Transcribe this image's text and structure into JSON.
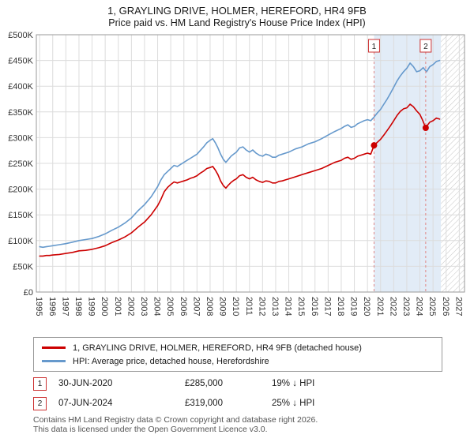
{
  "chart_data": {
    "type": "line",
    "title": "1, GRAYLING DRIVE, HOLMER, HEREFORD, HR4 9FB",
    "subtitle": "Price paid vs. HM Land Registry's House Price Index (HPI)",
    "xlabel": "",
    "ylabel": "",
    "grid": true,
    "xlim": [
      1994.75,
      2027.4
    ],
    "ylim": [
      0,
      500000
    ],
    "ytick_step": 50000,
    "yticks": [
      "£0",
      "£50K",
      "£100K",
      "£150K",
      "£200K",
      "£250K",
      "£300K",
      "£350K",
      "£400K",
      "£450K",
      "£500K"
    ],
    "xticks": [
      1995,
      1996,
      1997,
      1998,
      1999,
      2000,
      2001,
      2002,
      2003,
      2004,
      2005,
      2006,
      2007,
      2008,
      2009,
      2010,
      2011,
      2012,
      2013,
      2014,
      2015,
      2016,
      2017,
      2018,
      2019,
      2020,
      2021,
      2022,
      2023,
      2024,
      2025,
      2026,
      2027
    ],
    "shaded_band": {
      "from": 2020.5,
      "to": 2025.6,
      "color": "#e2ecf7"
    },
    "hatched_band": {
      "from": 2025.6,
      "to": 2027.4
    },
    "marker_color": "#cc3333",
    "marker_line_color": "#e08888",
    "markers": [
      {
        "label": "1",
        "x": 2020.5,
        "y": 285000
      },
      {
        "label": "2",
        "x": 2024.44,
        "y": 319000
      }
    ],
    "legend": {
      "position": "bottom",
      "items": [
        {
          "label": "1, GRAYLING DRIVE, HOLMER, HEREFORD, HR4 9FB (detached house)",
          "color": "#cc0000"
        },
        {
          "label": "HPI: Average price, detached house, Herefordshire",
          "color": "#6699cc"
        }
      ]
    },
    "series": [
      {
        "name": "price-paid",
        "color": "#cc0000",
        "points": [
          [
            1995,
            70000
          ],
          [
            1995.25,
            70000
          ],
          [
            1995.5,
            71000
          ],
          [
            1995.75,
            71000
          ],
          [
            1996,
            72000
          ],
          [
            1996.5,
            73000
          ],
          [
            1997,
            75000
          ],
          [
            1997.5,
            77000
          ],
          [
            1998,
            80000
          ],
          [
            1998.5,
            81000
          ],
          [
            1999,
            83000
          ],
          [
            1999.5,
            86000
          ],
          [
            2000,
            90000
          ],
          [
            2000.5,
            96000
          ],
          [
            2001,
            101000
          ],
          [
            2001.5,
            107000
          ],
          [
            2002,
            115000
          ],
          [
            2002.5,
            126000
          ],
          [
            2003,
            136000
          ],
          [
            2003.5,
            150000
          ],
          [
            2004,
            168000
          ],
          [
            2004.25,
            180000
          ],
          [
            2004.5,
            195000
          ],
          [
            2004.75,
            203000
          ],
          [
            2005,
            209000
          ],
          [
            2005.25,
            214000
          ],
          [
            2005.5,
            212000
          ],
          [
            2005.75,
            214000
          ],
          [
            2006,
            216000
          ],
          [
            2006.25,
            218000
          ],
          [
            2006.5,
            221000
          ],
          [
            2006.75,
            223000
          ],
          [
            2007,
            226000
          ],
          [
            2007.25,
            231000
          ],
          [
            2007.5,
            235000
          ],
          [
            2007.75,
            240000
          ],
          [
            2008,
            242000
          ],
          [
            2008.2,
            244000
          ],
          [
            2008.4,
            237000
          ],
          [
            2008.6,
            228000
          ],
          [
            2008.8,
            216000
          ],
          [
            2009,
            207000
          ],
          [
            2009.2,
            202000
          ],
          [
            2009.4,
            208000
          ],
          [
            2009.6,
            213000
          ],
          [
            2009.8,
            217000
          ],
          [
            2010,
            220000
          ],
          [
            2010.25,
            226000
          ],
          [
            2010.5,
            228000
          ],
          [
            2010.75,
            223000
          ],
          [
            2011,
            220000
          ],
          [
            2011.25,
            223000
          ],
          [
            2011.5,
            218000
          ],
          [
            2011.75,
            215000
          ],
          [
            2012,
            213000
          ],
          [
            2012.25,
            216000
          ],
          [
            2012.5,
            215000
          ],
          [
            2012.75,
            212000
          ],
          [
            2013,
            212000
          ],
          [
            2013.25,
            215000
          ],
          [
            2013.5,
            216000
          ],
          [
            2013.75,
            218000
          ],
          [
            2014,
            220000
          ],
          [
            2014.5,
            224000
          ],
          [
            2015,
            228000
          ],
          [
            2015.5,
            232000
          ],
          [
            2016,
            236000
          ],
          [
            2016.5,
            240000
          ],
          [
            2017,
            246000
          ],
          [
            2017.5,
            252000
          ],
          [
            2018,
            256000
          ],
          [
            2018.25,
            260000
          ],
          [
            2018.5,
            262000
          ],
          [
            2018.75,
            258000
          ],
          [
            2019,
            260000
          ],
          [
            2019.25,
            264000
          ],
          [
            2019.5,
            266000
          ],
          [
            2019.75,
            268000
          ],
          [
            2020,
            270000
          ],
          [
            2020.25,
            268000
          ],
          [
            2020.5,
            285000
          ],
          [
            2020.75,
            291000
          ],
          [
            2021,
            297000
          ],
          [
            2021.25,
            305000
          ],
          [
            2021.5,
            314000
          ],
          [
            2021.75,
            323000
          ],
          [
            2022,
            333000
          ],
          [
            2022.25,
            343000
          ],
          [
            2022.5,
            351000
          ],
          [
            2022.75,
            356000
          ],
          [
            2023,
            358000
          ],
          [
            2023.25,
            365000
          ],
          [
            2023.5,
            360000
          ],
          [
            2023.75,
            352000
          ],
          [
            2024,
            345000
          ],
          [
            2024.2,
            334000
          ],
          [
            2024.44,
            319000
          ],
          [
            2024.6,
            325000
          ],
          [
            2024.75,
            330000
          ],
          [
            2025,
            333000
          ],
          [
            2025.25,
            338000
          ],
          [
            2025.5,
            336000
          ]
        ]
      },
      {
        "name": "hpi",
        "color": "#6699cc",
        "points": [
          [
            1995,
            88000
          ],
          [
            1995.25,
            87000
          ],
          [
            1995.5,
            88000
          ],
          [
            1995.75,
            89000
          ],
          [
            1996,
            90000
          ],
          [
            1996.5,
            92000
          ],
          [
            1997,
            94000
          ],
          [
            1997.5,
            97000
          ],
          [
            1998,
            100000
          ],
          [
            1998.5,
            102000
          ],
          [
            1999,
            104000
          ],
          [
            1999.5,
            108000
          ],
          [
            2000,
            113000
          ],
          [
            2000.5,
            120000
          ],
          [
            2001,
            126000
          ],
          [
            2001.5,
            134000
          ],
          [
            2002,
            144000
          ],
          [
            2002.5,
            158000
          ],
          [
            2003,
            170000
          ],
          [
            2003.5,
            185000
          ],
          [
            2004,
            205000
          ],
          [
            2004.25,
            218000
          ],
          [
            2004.5,
            228000
          ],
          [
            2004.75,
            234000
          ],
          [
            2005,
            240000
          ],
          [
            2005.25,
            246000
          ],
          [
            2005.5,
            244000
          ],
          [
            2005.75,
            248000
          ],
          [
            2006,
            252000
          ],
          [
            2006.25,
            256000
          ],
          [
            2006.5,
            260000
          ],
          [
            2006.75,
            264000
          ],
          [
            2007,
            268000
          ],
          [
            2007.25,
            275000
          ],
          [
            2007.5,
            282000
          ],
          [
            2007.75,
            290000
          ],
          [
            2008,
            295000
          ],
          [
            2008.2,
            298000
          ],
          [
            2008.4,
            290000
          ],
          [
            2008.6,
            280000
          ],
          [
            2008.8,
            268000
          ],
          [
            2009,
            258000
          ],
          [
            2009.2,
            252000
          ],
          [
            2009.4,
            258000
          ],
          [
            2009.6,
            264000
          ],
          [
            2009.8,
            268000
          ],
          [
            2010,
            272000
          ],
          [
            2010.25,
            280000
          ],
          [
            2010.5,
            282000
          ],
          [
            2010.75,
            276000
          ],
          [
            2011,
            272000
          ],
          [
            2011.25,
            276000
          ],
          [
            2011.5,
            270000
          ],
          [
            2011.75,
            266000
          ],
          [
            2012,
            264000
          ],
          [
            2012.25,
            268000
          ],
          [
            2012.5,
            266000
          ],
          [
            2012.75,
            262000
          ],
          [
            2013,
            262000
          ],
          [
            2013.25,
            266000
          ],
          [
            2013.5,
            268000
          ],
          [
            2013.75,
            270000
          ],
          [
            2014,
            272000
          ],
          [
            2014.5,
            278000
          ],
          [
            2015,
            282000
          ],
          [
            2015.5,
            288000
          ],
          [
            2016,
            292000
          ],
          [
            2016.5,
            298000
          ],
          [
            2017,
            305000
          ],
          [
            2017.5,
            312000
          ],
          [
            2018,
            318000
          ],
          [
            2018.25,
            322000
          ],
          [
            2018.5,
            325000
          ],
          [
            2018.75,
            320000
          ],
          [
            2019,
            322000
          ],
          [
            2019.25,
            327000
          ],
          [
            2019.5,
            330000
          ],
          [
            2019.75,
            333000
          ],
          [
            2020,
            335000
          ],
          [
            2020.25,
            333000
          ],
          [
            2020.5,
            340000
          ],
          [
            2020.75,
            348000
          ],
          [
            2021,
            355000
          ],
          [
            2021.25,
            365000
          ],
          [
            2021.5,
            375000
          ],
          [
            2021.75,
            386000
          ],
          [
            2022,
            398000
          ],
          [
            2022.25,
            410000
          ],
          [
            2022.5,
            420000
          ],
          [
            2022.75,
            428000
          ],
          [
            2023,
            435000
          ],
          [
            2023.25,
            445000
          ],
          [
            2023.5,
            438000
          ],
          [
            2023.75,
            428000
          ],
          [
            2024,
            430000
          ],
          [
            2024.25,
            436000
          ],
          [
            2024.5,
            428000
          ],
          [
            2024.75,
            438000
          ],
          [
            2025,
            442000
          ],
          [
            2025.25,
            448000
          ],
          [
            2025.5,
            450000
          ]
        ]
      }
    ]
  },
  "transactions": [
    {
      "marker": "1",
      "date": "30-JUN-2020",
      "price": "£285,000",
      "hpi_diff": "19% ↓ HPI"
    },
    {
      "marker": "2",
      "date": "07-JUN-2024",
      "price": "£319,000",
      "hpi_diff": "25% ↓ HPI"
    }
  ],
  "footer": {
    "line1": "Contains HM Land Registry data © Crown copyright and database right 2026.",
    "line2": "This data is licensed under the Open Government Licence v3.0."
  }
}
